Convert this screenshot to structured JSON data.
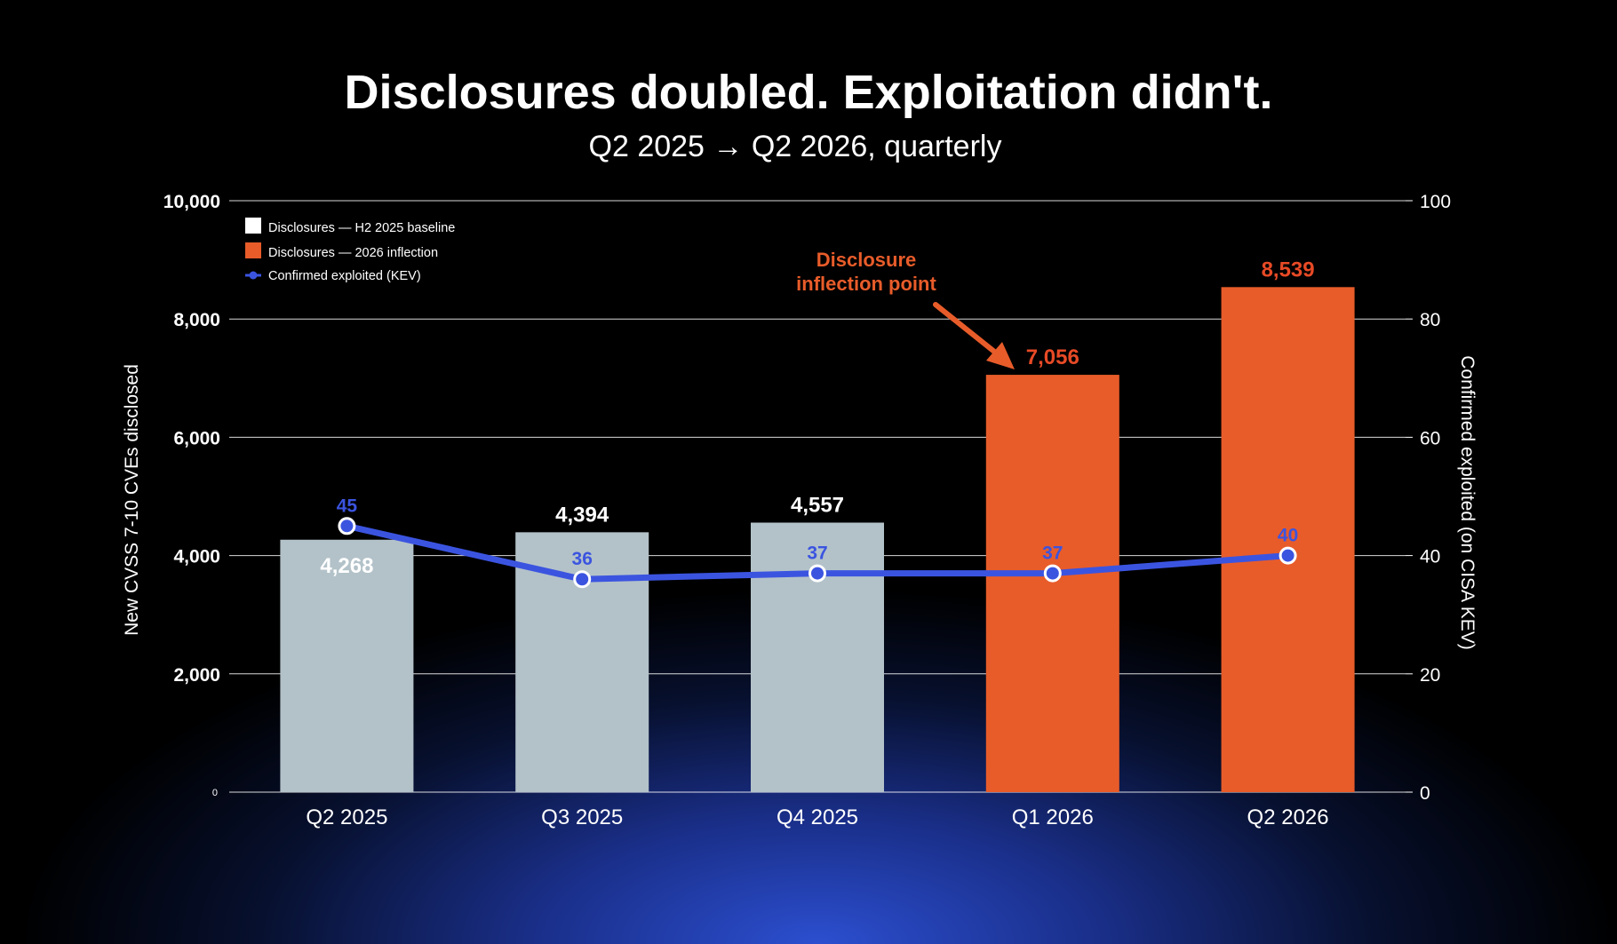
{
  "colors": {
    "baseline_bar": "#b3c2c9",
    "inflection_bar": "#e85c2a",
    "kev_line": "#3b54e0",
    "grid": "#ffffff",
    "inflection_label": "#e74a26"
  },
  "chart_data": {
    "type": "bar",
    "title": "Disclosures doubled. Exploitation didn't.",
    "subtitle": "Q2 2025 → Q2 2026, quarterly",
    "categories": [
      "Q2 2025",
      "Q3 2025",
      "Q4 2025",
      "Q1 2026",
      "Q2 2026"
    ],
    "series": [
      {
        "name": "Disclosures — H2 2025 baseline",
        "type": "bar",
        "axis": "left",
        "values": [
          4268,
          4394,
          4557,
          null,
          null
        ],
        "labels": [
          "4,268",
          "4,394",
          "4,557",
          "",
          ""
        ]
      },
      {
        "name": "Disclosures — 2026 inflection",
        "type": "bar",
        "axis": "left",
        "values": [
          null,
          null,
          null,
          7056,
          8539
        ],
        "labels": [
          "",
          "",
          "",
          "7,056",
          "8,539"
        ]
      },
      {
        "name": "Confirmed exploited (KEV)",
        "type": "line",
        "axis": "right",
        "values": [
          45,
          36,
          37,
          37,
          40
        ],
        "labels": [
          "45",
          "36",
          "37",
          "37",
          "40"
        ]
      }
    ],
    "ylabel": "New CVSS 7-10 CVEs disclosed",
    "y2label": "Confirmed exploited (on CISA KEV)",
    "ylim": [
      0,
      10000
    ],
    "y2lim": [
      0,
      100
    ],
    "yticks": [
      0,
      2000,
      4000,
      6000,
      8000,
      10000
    ],
    "ytick_labels": [
      "0",
      "2,000",
      "4,000",
      "6,000",
      "8,000",
      "10,000"
    ],
    "y2ticks": [
      0,
      20,
      40,
      60,
      80,
      100
    ],
    "y2tick_labels": [
      "0",
      "20",
      "40",
      "60",
      "80",
      "100"
    ],
    "grid": true,
    "legend_position": "top-left",
    "annotation": {
      "lines": [
        "Disclosure",
        "inflection point"
      ],
      "target_category": "Q1 2026"
    }
  }
}
